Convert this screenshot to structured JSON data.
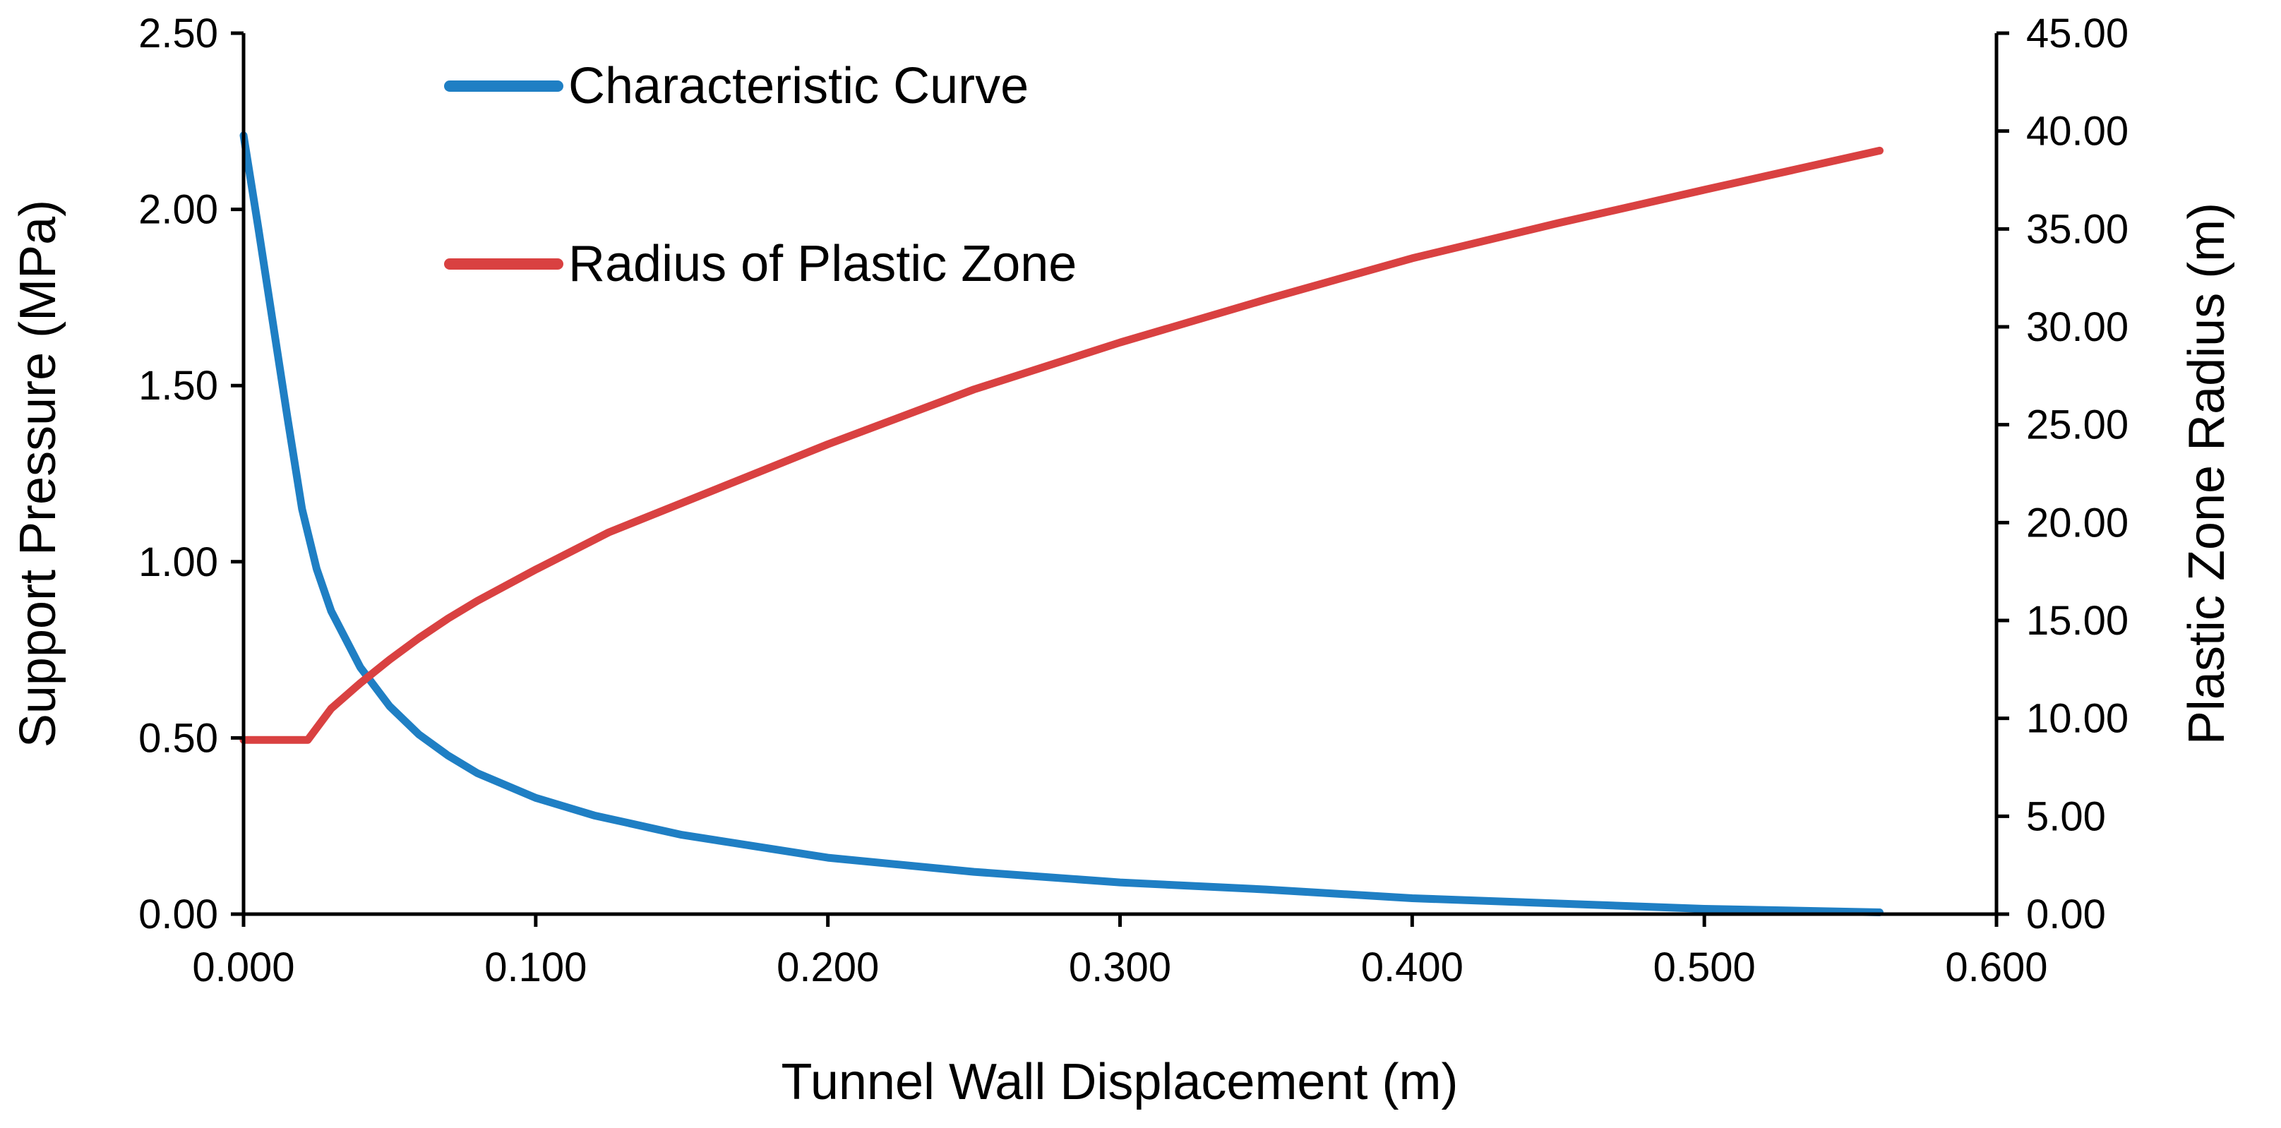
{
  "chart_data": {
    "type": "line",
    "xlabel": "Tunnel Wall Displacement (m)",
    "ylabel": "Support Pressure (MPa)",
    "y2label": "Plastic Zone Radius (m)",
    "xlim": [
      0,
      0.6
    ],
    "ylim": [
      0,
      2.5
    ],
    "y2lim": [
      0,
      45
    ],
    "x_ticks": [
      0,
      0.1,
      0.2,
      0.3,
      0.4,
      0.5,
      0.6
    ],
    "y_ticks": [
      0,
      0.5,
      1.0,
      1.5,
      2.0,
      2.5
    ],
    "y2_ticks": [
      0,
      5,
      10,
      15,
      20,
      25,
      30,
      35,
      40,
      45
    ],
    "x_tick_labels": [
      "0.000",
      "0.100",
      "0.200",
      "0.300",
      "0.400",
      "0.500",
      "0.600"
    ],
    "y_tick_labels": [
      "0.00",
      "0.50",
      "1.00",
      "1.50",
      "2.00",
      "2.50"
    ],
    "y2_tick_labels": [
      "0.00",
      "5.00",
      "10.00",
      "15.00",
      "20.00",
      "25.00",
      "30.00",
      "35.00",
      "40.00",
      "45.00"
    ],
    "grid": false,
    "legend_position": "top-left",
    "series": [
      {
        "name": "Characteristic Curve",
        "axis": "left",
        "color": "#1f7fc4",
        "x": [
          0.0,
          0.005,
          0.01,
          0.015,
          0.02,
          0.025,
          0.03,
          0.04,
          0.05,
          0.06,
          0.07,
          0.08,
          0.1,
          0.12,
          0.15,
          0.2,
          0.25,
          0.3,
          0.35,
          0.4,
          0.45,
          0.5,
          0.56
        ],
        "y": [
          2.21,
          1.95,
          1.68,
          1.41,
          1.15,
          0.98,
          0.86,
          0.7,
          0.59,
          0.51,
          0.45,
          0.4,
          0.33,
          0.28,
          0.225,
          0.16,
          0.12,
          0.09,
          0.07,
          0.045,
          0.03,
          0.015,
          0.005
        ]
      },
      {
        "name": "Radius of Plastic Zone",
        "axis": "right",
        "color": "#d94141",
        "x": [
          0.0,
          0.01,
          0.02,
          0.022,
          0.03,
          0.04,
          0.05,
          0.06,
          0.07,
          0.08,
          0.1,
          0.125,
          0.15,
          0.2,
          0.25,
          0.3,
          0.35,
          0.4,
          0.45,
          0.5,
          0.56
        ],
        "y": [
          8.9,
          8.9,
          8.9,
          8.9,
          10.5,
          11.8,
          13.0,
          14.1,
          15.1,
          16.0,
          17.6,
          19.5,
          21.0,
          24.0,
          26.8,
          29.2,
          31.4,
          33.5,
          35.3,
          37.0,
          39.0
        ]
      }
    ]
  }
}
